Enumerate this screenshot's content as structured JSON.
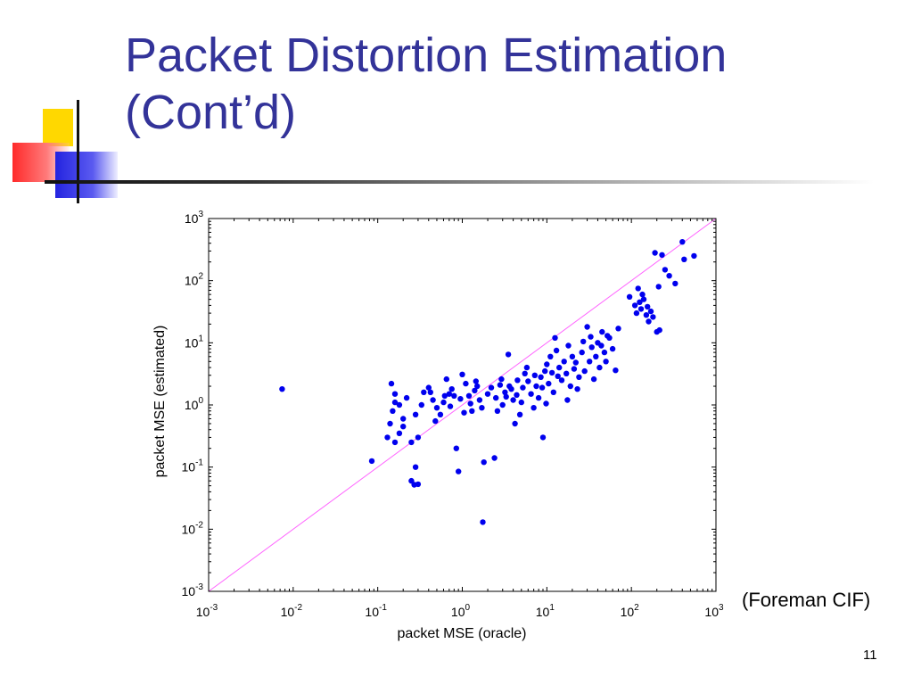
{
  "slide": {
    "title_line1": "Packet Distortion Estimation",
    "title_line2": "(Cont’d)",
    "annotation": "(Foreman CIF)",
    "page_number": "11",
    "colors": {
      "title": "#333399",
      "points": "#0000ee",
      "reference_line": "#ff66ff"
    }
  },
  "chart_data": {
    "type": "scatter",
    "xlabel": "packet MSE (oracle)",
    "ylabel": "packet MSE (estimated)",
    "xscale": "log",
    "yscale": "log",
    "xlim": [
      0.001,
      1000
    ],
    "ylim": [
      0.001,
      1000
    ],
    "x_ticks": [
      {
        "base": "10",
        "exp": "-3"
      },
      {
        "base": "10",
        "exp": "-2"
      },
      {
        "base": "10",
        "exp": "-1"
      },
      {
        "base": "10",
        "exp": "0"
      },
      {
        "base": "10",
        "exp": "1"
      },
      {
        "base": "10",
        "exp": "2"
      },
      {
        "base": "10",
        "exp": "3"
      }
    ],
    "y_ticks": [
      {
        "base": "10",
        "exp": "-3"
      },
      {
        "base": "10",
        "exp": "-2"
      },
      {
        "base": "10",
        "exp": "-1"
      },
      {
        "base": "10",
        "exp": "0"
      },
      {
        "base": "10",
        "exp": "1"
      },
      {
        "base": "10",
        "exp": "2"
      },
      {
        "base": "10",
        "exp": "3"
      }
    ],
    "reference_line": "y = x",
    "grid": false,
    "legend": "none",
    "series": [
      {
        "points": [
          [
            0.0074,
            1.8
          ],
          [
            0.085,
            0.125
          ],
          [
            0.145,
            2.2
          ],
          [
            0.16,
            1.5
          ],
          [
            0.15,
            0.8
          ],
          [
            0.18,
            1.0
          ],
          [
            0.2,
            0.6
          ],
          [
            0.22,
            1.3
          ],
          [
            0.25,
            0.06
          ],
          [
            0.27,
            0.052
          ],
          [
            0.3,
            0.053
          ],
          [
            0.28,
            0.1
          ],
          [
            0.14,
            0.5
          ],
          [
            0.13,
            0.3
          ],
          [
            0.16,
            0.25
          ],
          [
            0.18,
            0.35
          ],
          [
            0.2,
            0.45
          ],
          [
            0.25,
            0.25
          ],
          [
            0.3,
            0.3
          ],
          [
            0.35,
            1.6
          ],
          [
            0.4,
            1.9
          ],
          [
            0.45,
            1.2
          ],
          [
            0.5,
            0.9
          ],
          [
            0.55,
            0.7
          ],
          [
            0.6,
            1.1
          ],
          [
            0.65,
            2.6
          ],
          [
            0.7,
            1.5
          ],
          [
            0.75,
            1.8
          ],
          [
            0.8,
            1.4
          ],
          [
            0.85,
            0.2
          ],
          [
            0.9,
            0.085
          ],
          [
            1.0,
            3.1
          ],
          [
            1.1,
            2.2
          ],
          [
            1.2,
            1.4
          ],
          [
            1.3,
            0.8
          ],
          [
            1.4,
            1.7
          ],
          [
            1.5,
            2.0
          ],
          [
            1.6,
            1.2
          ],
          [
            1.7,
            0.9
          ],
          [
            1.8,
            0.12
          ],
          [
            1.75,
            0.013
          ],
          [
            2.0,
            1.5
          ],
          [
            2.2,
            1.9
          ],
          [
            2.4,
            0.14
          ],
          [
            2.5,
            1.3
          ],
          [
            2.8,
            2.1
          ],
          [
            3.0,
            1.0
          ],
          [
            3.2,
            1.6
          ],
          [
            3.5,
            6.5
          ],
          [
            3.6,
            2.0
          ],
          [
            3.8,
            1.8
          ],
          [
            4.0,
            1.2
          ],
          [
            4.2,
            0.5
          ],
          [
            4.5,
            2.5
          ],
          [
            4.8,
            0.7
          ],
          [
            5.0,
            1.1
          ],
          [
            5.2,
            1.9
          ],
          [
            5.5,
            3.2
          ],
          [
            6.0,
            2.4
          ],
          [
            6.5,
            1.5
          ],
          [
            7.0,
            0.9
          ],
          [
            7.5,
            2.0
          ],
          [
            8.0,
            1.3
          ],
          [
            8.5,
            2.8
          ],
          [
            9.0,
            0.3
          ],
          [
            9.5,
            3.5
          ],
          [
            10,
            4.5
          ],
          [
            10.5,
            2.2
          ],
          [
            11,
            6.0
          ],
          [
            11.5,
            3.3
          ],
          [
            12,
            1.6
          ],
          [
            12.5,
            12
          ],
          [
            13,
            7.5
          ],
          [
            14,
            4.0
          ],
          [
            15,
            2.5
          ],
          [
            16,
            5.0
          ],
          [
            17,
            3.2
          ],
          [
            18,
            9.0
          ],
          [
            19,
            2.0
          ],
          [
            20,
            6.0
          ],
          [
            21,
            3.8
          ],
          [
            22,
            4.8
          ],
          [
            24,
            2.8
          ],
          [
            26,
            7.0
          ],
          [
            28,
            3.5
          ],
          [
            30,
            18
          ],
          [
            32,
            5.0
          ],
          [
            34,
            8.5
          ],
          [
            36,
            2.6
          ],
          [
            38,
            6.0
          ],
          [
            40,
            10
          ],
          [
            42,
            4.0
          ],
          [
            45,
            15
          ],
          [
            48,
            7.0
          ],
          [
            50,
            5.0
          ],
          [
            55,
            12
          ],
          [
            60,
            8.0
          ],
          [
            65,
            3.6
          ],
          [
            70,
            17
          ],
          [
            95,
            55
          ],
          [
            110,
            40
          ],
          [
            115,
            30
          ],
          [
            120,
            75
          ],
          [
            125,
            45
          ],
          [
            130,
            35
          ],
          [
            135,
            60
          ],
          [
            140,
            50
          ],
          [
            150,
            28
          ],
          [
            155,
            38
          ],
          [
            160,
            22
          ],
          [
            170,
            32
          ],
          [
            180,
            26
          ],
          [
            190,
            280
          ],
          [
            200,
            15
          ],
          [
            210,
            80
          ],
          [
            215,
            16
          ],
          [
            230,
            260
          ],
          [
            250,
            150
          ],
          [
            280,
            120
          ],
          [
            330,
            90
          ],
          [
            400,
            420
          ],
          [
            420,
            220
          ],
          [
            550,
            250
          ],
          [
            0.16,
            1.1
          ],
          [
            0.28,
            0.7
          ],
          [
            0.33,
            1.0
          ],
          [
            0.42,
            1.6
          ],
          [
            0.48,
            0.55
          ],
          [
            0.62,
            1.4
          ],
          [
            0.72,
            0.95
          ],
          [
            0.95,
            1.25
          ],
          [
            1.05,
            0.75
          ],
          [
            1.25,
            1.05
          ],
          [
            1.45,
            2.4
          ],
          [
            2.6,
            0.8
          ],
          [
            2.9,
            2.6
          ],
          [
            3.3,
            1.35
          ],
          [
            4.4,
            1.45
          ],
          [
            5.8,
            4.0
          ],
          [
            7.2,
            3.0
          ],
          [
            8.8,
            1.9
          ],
          [
            9.8,
            1.05
          ],
          [
            13.5,
            2.9
          ],
          [
            17.5,
            1.2
          ],
          [
            23,
            1.8
          ],
          [
            27,
            10.5
          ],
          [
            33,
            12.5
          ],
          [
            44,
            9.0
          ],
          [
            52,
            13
          ]
        ]
      }
    ]
  }
}
